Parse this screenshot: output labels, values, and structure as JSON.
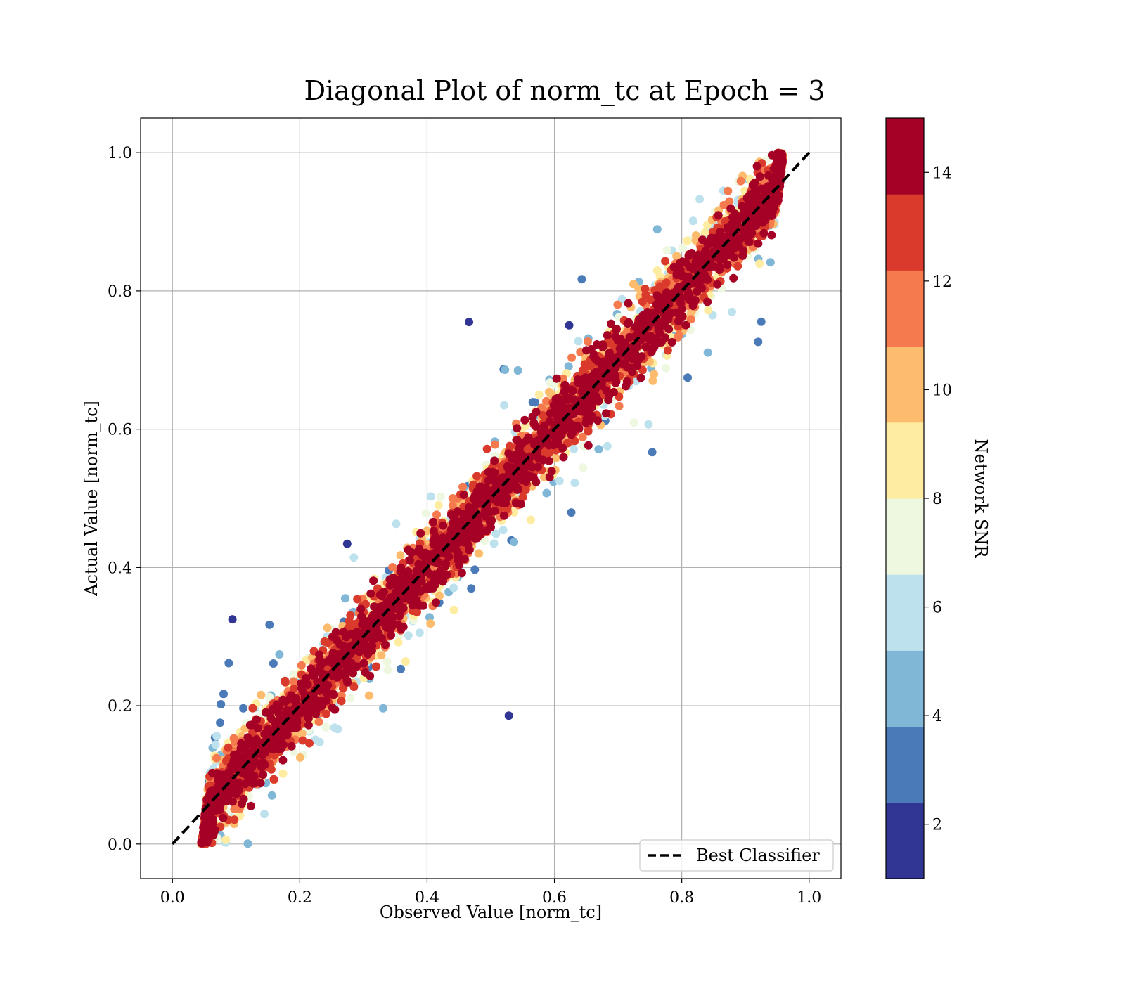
{
  "chart_data": {
    "type": "scatter",
    "title": "Diagonal Plot of norm_tc at Epoch = 3",
    "xlabel": "Observed Value [norm_tc]",
    "ylabel": "Actual Value [norm_tc]",
    "xlim": [
      -0.05,
      1.05
    ],
    "ylim": [
      -0.05,
      1.05
    ],
    "xticks": [
      "0.0",
      "0.2",
      "0.4",
      "0.6",
      "0.8",
      "1.0"
    ],
    "yticks": [
      "0.0",
      "0.2",
      "0.4",
      "0.6",
      "0.8",
      "1.0"
    ],
    "grid": true,
    "reference_line": {
      "name": "Best Classifier",
      "x": [
        0,
        1
      ],
      "y": [
        0,
        1
      ],
      "style": "dashed",
      "color": "#000000"
    },
    "legend": {
      "placement": "lower-right",
      "entries": [
        "Best Classifier"
      ]
    },
    "colorbar": {
      "label": "Network SNR",
      "range": [
        1,
        15
      ],
      "ticks": [
        "2",
        "4",
        "6",
        "8",
        "10",
        "12",
        "14"
      ],
      "colors": [
        "#313695",
        "#4575b4",
        "#74add1",
        "#abd9e9",
        "#e0f3f8",
        "#ffffbf",
        "#fee090",
        "#fdae61",
        "#f46d43",
        "#d73027",
        "#a50026"
      ],
      "bin_colors": [
        "#313695",
        "#4a7ab7",
        "#80b6d6",
        "#bde2ee",
        "#eef8e0",
        "#feeca0",
        "#fdbb6d",
        "#f57b4f",
        "#da3a2c",
        "#a50026"
      ],
      "colormap": "RdYlBu_r"
    },
    "points_summary": {
      "description_x_range": [
        0.05,
        0.96
      ],
      "description_y_range": [
        0.0,
        1.0
      ],
      "high_snr_band": "dense band of SNR ~14-15 points along the diagonal",
      "low_snr_spread": "lower SNR points spread far from the diagonal toward the top-left and bottom-right"
    }
  }
}
